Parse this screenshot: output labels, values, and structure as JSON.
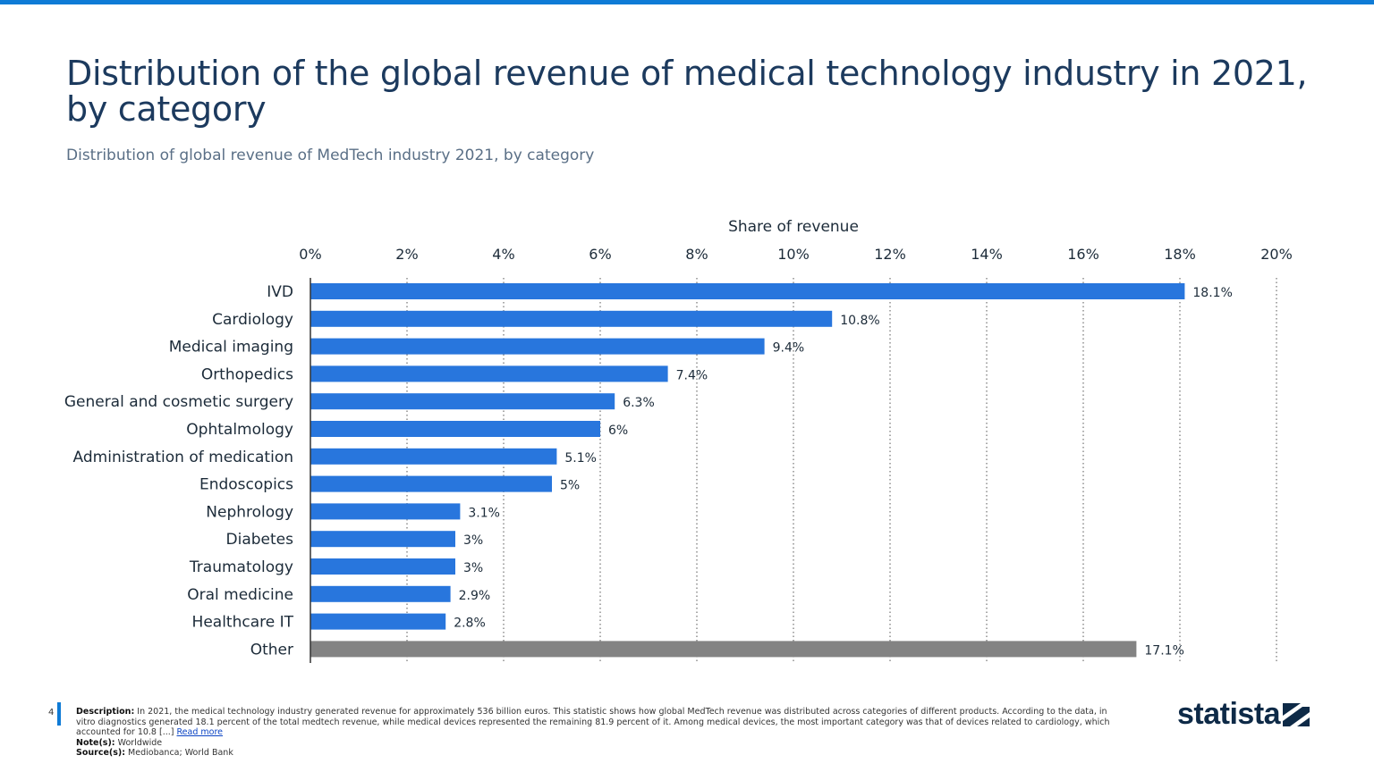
{
  "title": "Distribution of the global revenue of medical technology industry in 2021, by category",
  "subtitle": "Distribution of global revenue of MedTech industry 2021, by category",
  "chart_data": {
    "type": "bar",
    "orientation": "horizontal",
    "xlabel": "Share of revenue",
    "xlim": [
      0,
      20
    ],
    "ticks": [
      "0%",
      "2%",
      "4%",
      "6%",
      "8%",
      "10%",
      "12%",
      "14%",
      "16%",
      "18%",
      "20%"
    ],
    "tick_values": [
      0,
      2,
      4,
      6,
      8,
      10,
      12,
      14,
      16,
      18,
      20
    ],
    "grid": true,
    "categories": [
      "IVD",
      "Cardiology",
      "Medical imaging",
      "Orthopedics",
      "General and cosmetic surgery",
      "Ophtalmology",
      "Administration of medication",
      "Endoscopics",
      "Nephrology",
      "Diabetes",
      "Traumatology",
      "Oral medicine",
      "Healthcare IT",
      "Other"
    ],
    "values": [
      18.1,
      10.8,
      9.4,
      7.4,
      6.3,
      6,
      5.1,
      5,
      3.1,
      3,
      3,
      2.9,
      2.8,
      17.1
    ],
    "labels": [
      "18.1%",
      "10.8%",
      "9.4%",
      "7.4%",
      "6.3%",
      "6%",
      "5.1%",
      "5%",
      "3.1%",
      "3%",
      "3%",
      "2.9%",
      "2.8%",
      "17.1%"
    ],
    "colors": {
      "default": "#2876dd",
      "Other": "#838383"
    }
  },
  "footer": {
    "page": "4",
    "description_label": "Description:",
    "description": " In 2021, the medical technology industry generated revenue for approximately 536 billion euros. This statistic shows how global MedTech revenue was distributed across categories of different products. According to the data, in vitro diagnostics generated 18.1 percent of the total medtech revenue, while medical devices represented the remaining 81.9 percent of it. Among medical devices, the most important category was that of devices related to cardiology, which accounted for 10.8 [...] ",
    "read_more": "Read more",
    "note_label": "Note(s):",
    "note": " Worldwide",
    "source_label": "Source(s):",
    "source": " Mediobanca; World Bank"
  },
  "logo": "statista"
}
